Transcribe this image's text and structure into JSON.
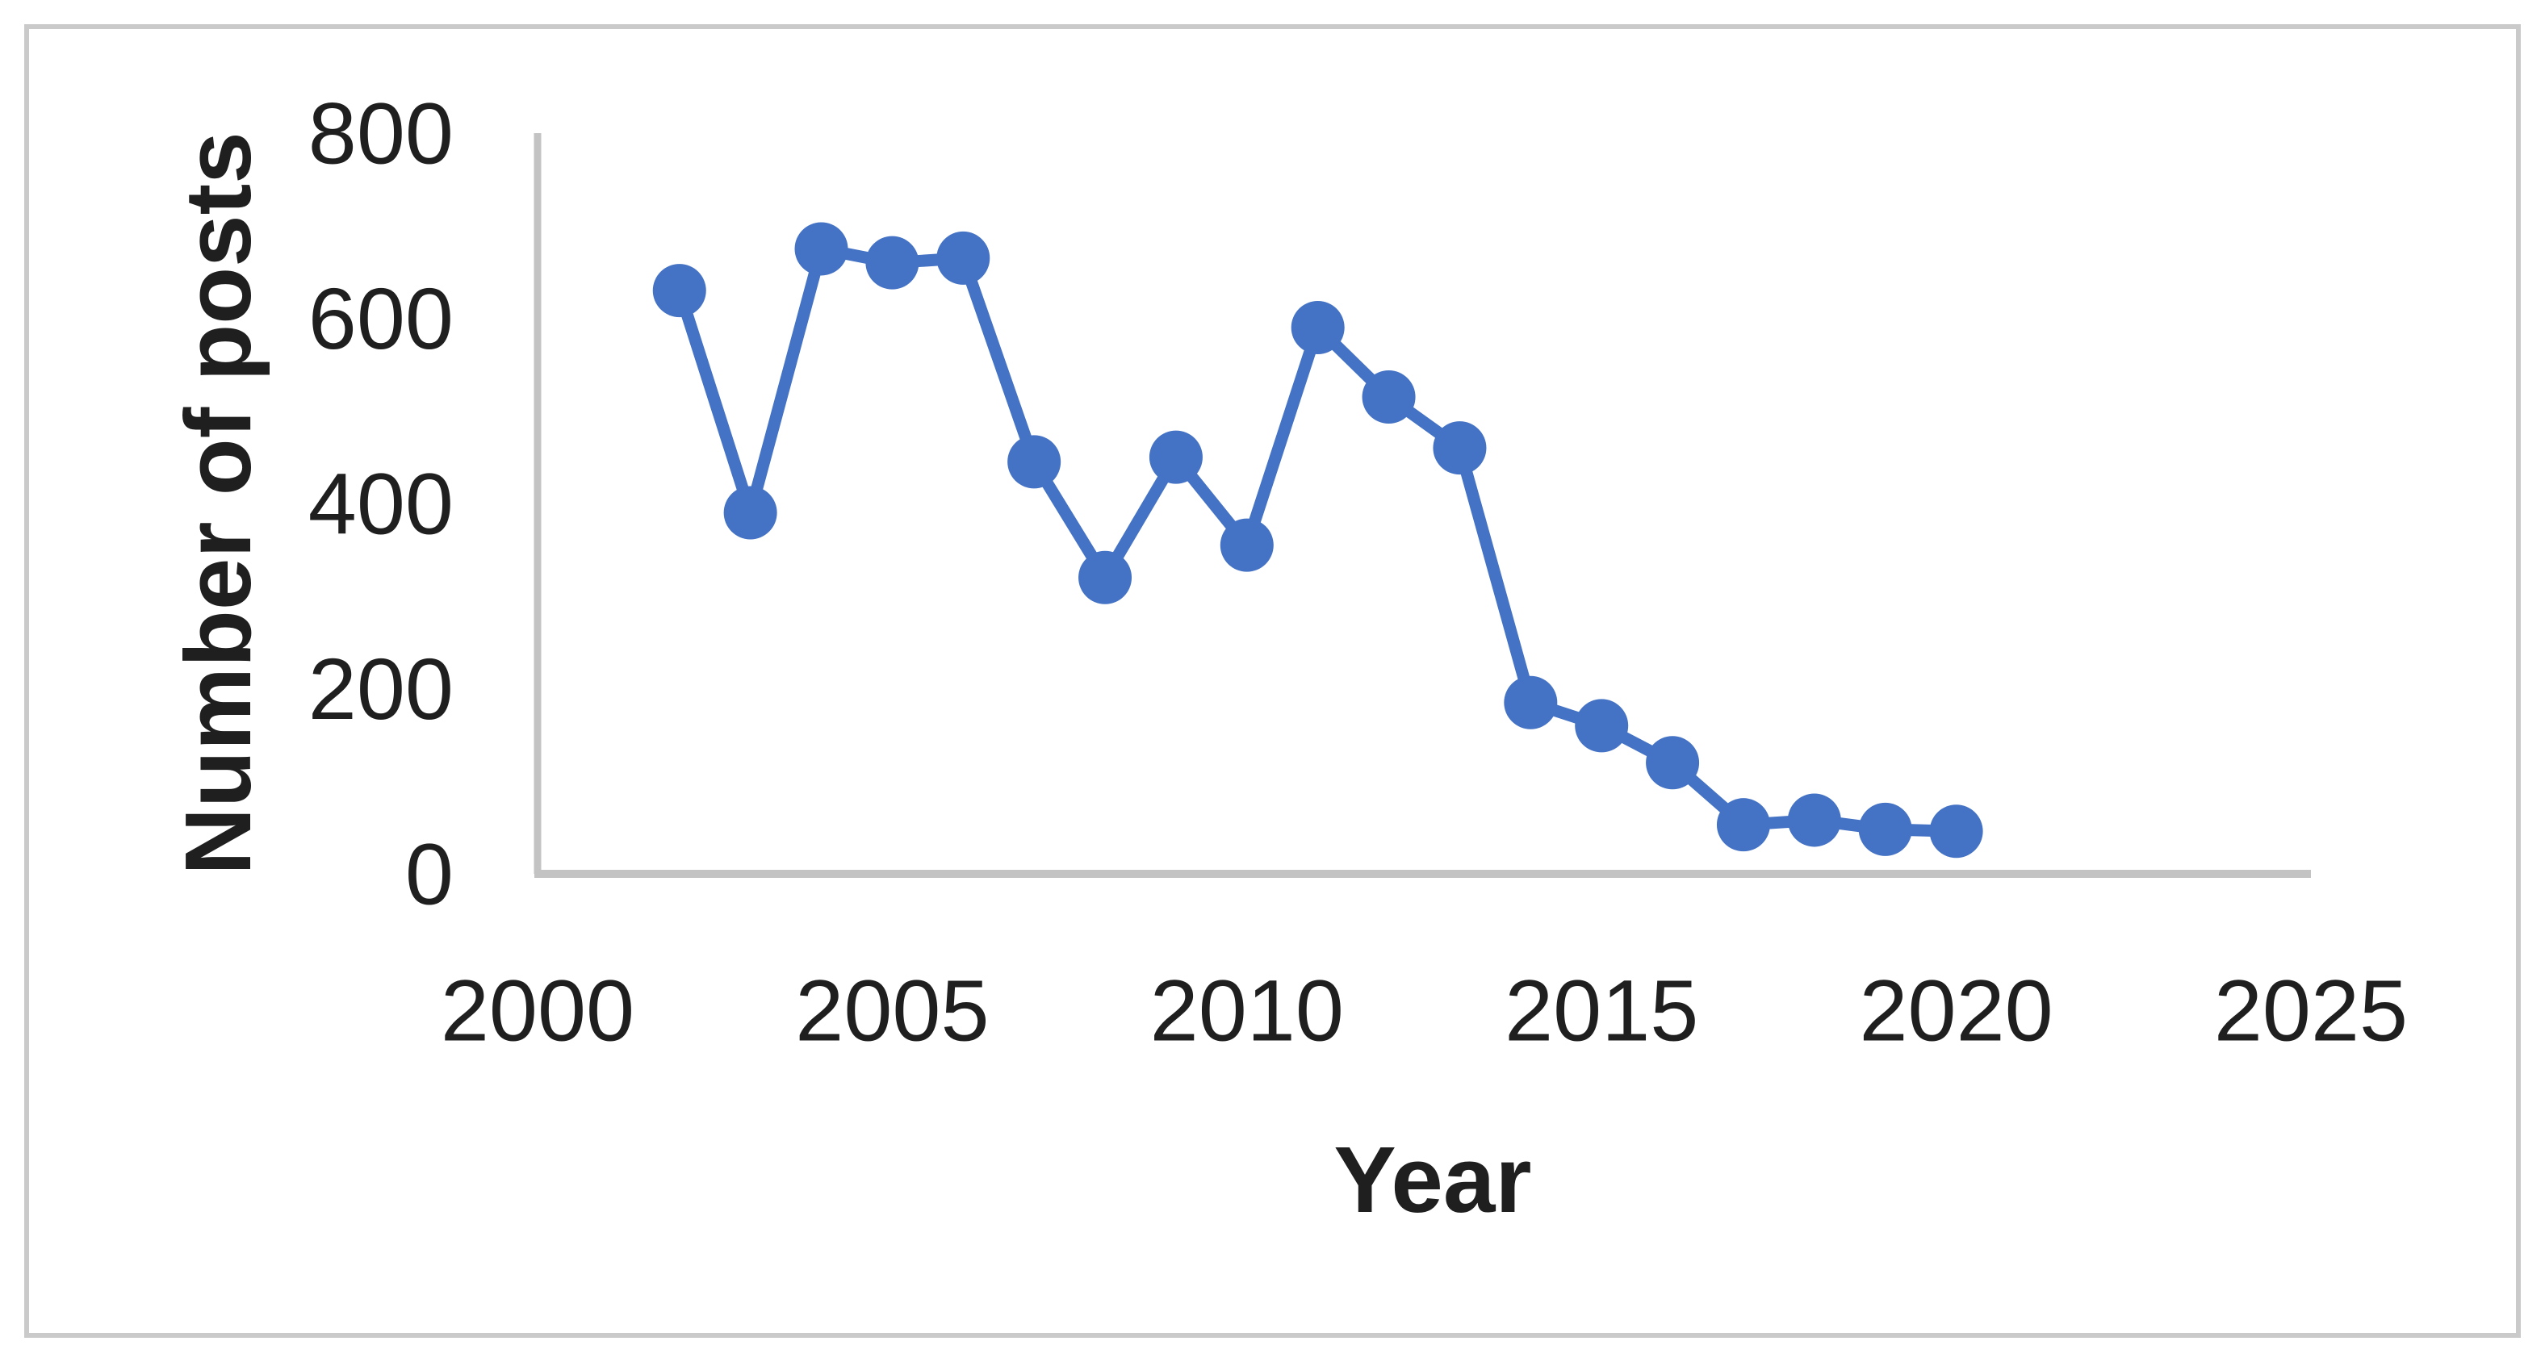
{
  "figure": {
    "kind": "embedded line chart"
  },
  "chart_data": {
    "type": "line",
    "title": "",
    "xlabel": "Year",
    "ylabel": "Number of posts",
    "x": [
      2002,
      2003,
      2004,
      2005,
      2006,
      2007,
      2008,
      2009,
      2010,
      2011,
      2012,
      2013,
      2014,
      2015,
      2016,
      2017,
      2018,
      2019,
      2020
    ],
    "series": [
      {
        "name": "Number of posts",
        "values": [
          630,
          390,
          675,
          660,
          665,
          445,
          320,
          450,
          355,
          590,
          515,
          460,
          185,
          160,
          120,
          53,
          58,
          48,
          46
        ]
      }
    ],
    "xlim": [
      2000,
      2025
    ],
    "ylim": [
      0,
      800
    ],
    "x_ticks": [
      "2000",
      "2005",
      "2010",
      "2015",
      "2020",
      "2025"
    ],
    "x_tick_values": [
      2000,
      2005,
      2010,
      2015,
      2020,
      2025
    ],
    "y_ticks": [
      "0",
      "200",
      "400",
      "600",
      "800"
    ],
    "y_tick_values": [
      0,
      200,
      400,
      600,
      800
    ],
    "grid": "off",
    "legend": "none",
    "marker": "circle",
    "colors": {
      "series": "#4472C4",
      "axis": "#C3C3C3",
      "text": "#1F1F1F",
      "border": "#CACACA",
      "background": "#FFFFFF"
    }
  }
}
